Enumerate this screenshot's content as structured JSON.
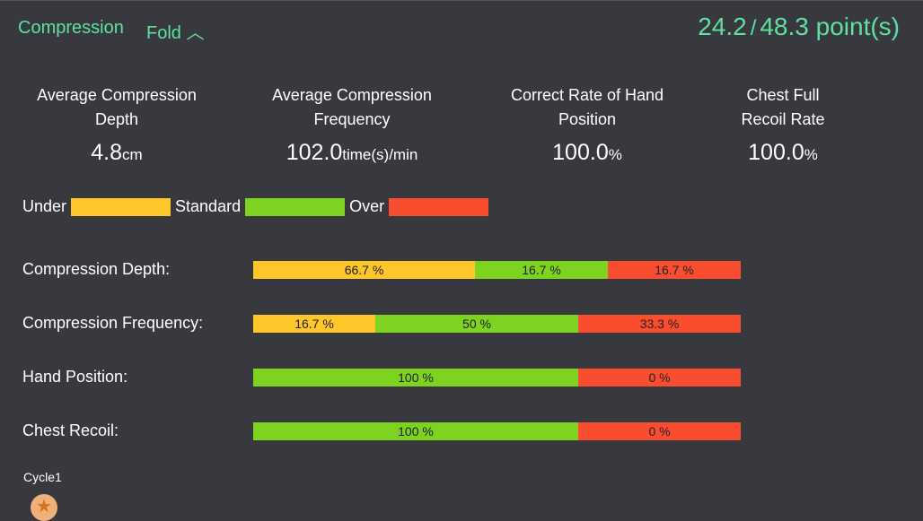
{
  "header": {
    "title": "Compression",
    "fold_label": "Fold",
    "fold_icon": "chevron-up-icon",
    "score": "24.2",
    "separator": "/",
    "total": "48.3 point(s)"
  },
  "stats": [
    {
      "label": "Average Compression Depth",
      "value": "4.8",
      "unit": "cm"
    },
    {
      "label": "Average Compression Frequency",
      "value": "102.0",
      "unit": "time(s)/min"
    },
    {
      "label": "Correct Rate of Hand Position",
      "value": "100.0",
      "unit": "%"
    },
    {
      "label": "Chest Full Recoil Rate",
      "value": "100.0",
      "unit": "%"
    }
  ],
  "legend": {
    "under": "Under",
    "standard": "Standard",
    "over": "Over"
  },
  "colors": {
    "under": "#ffc629",
    "standard": "#7ed321",
    "over": "#fa4d30",
    "accent": "#5fe0a0"
  },
  "rows": [
    {
      "label": "Compression Depth:",
      "under": "66.7 %",
      "standard": "16.7 %",
      "over": "16.7 %"
    },
    {
      "label": "Compression Frequency:",
      "under": "16.7 %",
      "standard": "50 %",
      "over": "33.3 %"
    },
    {
      "label": "Hand Position:",
      "standard": "100 %",
      "over": "0 %"
    },
    {
      "label": "Chest Recoil:",
      "standard": "100 %",
      "over": "0 %"
    }
  ],
  "cycle": {
    "label": "Cycle1",
    "icon": "star-icon"
  }
}
